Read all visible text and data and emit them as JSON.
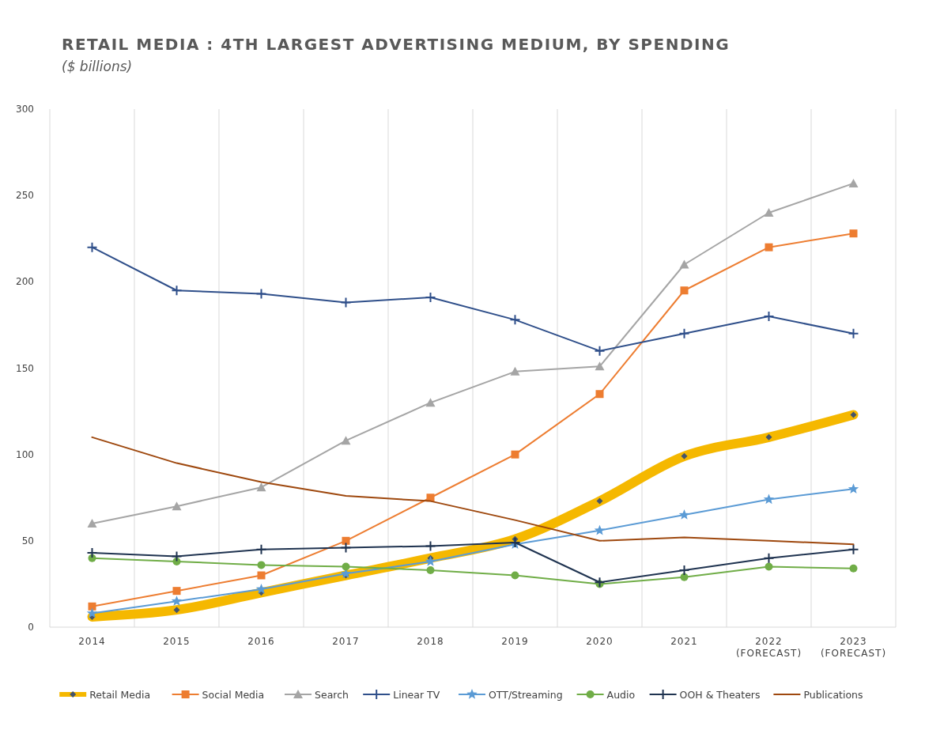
{
  "chart_data": {
    "type": "line",
    "title": "RETAIL MEDIA : 4TH LARGEST ADVERTISING MEDIUM, BY SPENDING",
    "subtitle": "($ billions)",
    "categories": [
      "2014",
      "2015",
      "2016",
      "2017",
      "2018",
      "2019",
      "2020",
      "2021",
      "2022\n(FORECAST)",
      "2023\n(FORECAST)"
    ],
    "ylim": [
      0,
      300
    ],
    "yticks": [
      0,
      50,
      100,
      150,
      200,
      250,
      300
    ],
    "grid": "x",
    "legend": "bottom",
    "series": [
      {
        "name": "Retail Media",
        "color": "#f5b800",
        "marker": "diamond",
        "values": [
          6,
          10,
          20,
          30,
          40,
          51,
          73,
          99,
          110,
          123
        ]
      },
      {
        "name": "Social Media",
        "color": "#ed7d31",
        "marker": "square",
        "values": [
          12,
          21,
          30,
          50,
          75,
          100,
          135,
          195,
          220,
          228
        ]
      },
      {
        "name": "Search",
        "color": "#a5a5a5",
        "marker": "triangle",
        "values": [
          60,
          70,
          81,
          108,
          130,
          148,
          151,
          210,
          240,
          257
        ]
      },
      {
        "name": "Linear TV",
        "color": "#2f4f8a",
        "marker": "cross",
        "values": [
          220,
          195,
          193,
          188,
          191,
          178,
          160,
          170,
          180,
          170
        ]
      },
      {
        "name": "OTT/Streaming",
        "color": "#5b9bd5",
        "marker": "star",
        "values": [
          8,
          15,
          22,
          31,
          38,
          48,
          56,
          65,
          74,
          80
        ]
      },
      {
        "name": "Audio",
        "color": "#70ad47",
        "marker": "circle",
        "values": [
          40,
          38,
          36,
          35,
          33,
          30,
          25,
          29,
          35,
          34
        ]
      },
      {
        "name": "OOH & Theaters",
        "color": "#1f3350",
        "marker": "cross",
        "values": [
          43,
          41,
          45,
          46,
          47,
          49,
          26,
          33,
          40,
          45
        ]
      },
      {
        "name": "Publications",
        "color": "#9e480e",
        "marker": "none",
        "values": [
          110,
          95,
          84,
          76,
          73,
          62,
          50,
          52,
          50,
          48
        ]
      }
    ]
  }
}
